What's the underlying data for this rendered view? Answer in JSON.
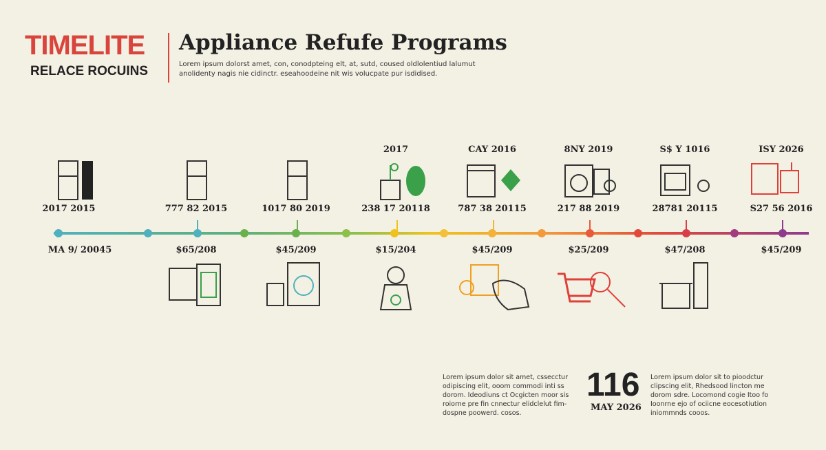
{
  "header": {
    "brand": "TIMELITE",
    "brand_sub": "RELACE ROCUINS",
    "title": "Appliance Refufe Programs",
    "subtitle": [
      "Lorem ipsum dolorst amet, con, conodpteing elt, at, sutd, coused oldlolentiud lalumut",
      "anolidenty nagis nie cidinctr. eseahoodeine nit wis volucpate pur isdidised."
    ]
  },
  "timeline": {
    "items": [
      {
        "top_label": "2017 2015",
        "bottom_label": "MA 9/ 20045"
      },
      {
        "top_label": "777 82 2015",
        "bottom_label": "$65/208"
      },
      {
        "top_label": "1017 80 2019",
        "bottom_label": "$45/209"
      },
      {
        "top_date": "2017",
        "top_label": "238 17 20118",
        "bottom_label": "$15/204"
      },
      {
        "top_date": "CAY 2016",
        "top_label": "787 38 20115",
        "bottom_label": "$45/209"
      },
      {
        "top_date": "8NY 2019",
        "top_label": "217 88 2019",
        "bottom_label": "$25/209"
      },
      {
        "top_date": "S$ Y 1016",
        "top_label": "28781 20115",
        "bottom_label": "$47/208"
      },
      {
        "top_date": "ISY 2026",
        "top_label": "S27 56 2016",
        "bottom_label": "$45/209"
      }
    ]
  },
  "footer": {
    "left_text": [
      "Lorem ipsum dolor sit amet, cssecctur",
      "odipiscing elit, ooom commodi inti ss",
      "dorom. Ideodiuns ct Ocgicten moor sis",
      "roiorne pre fin cnnectur elidclelut fim-",
      "dospne poowerd. cosos."
    ],
    "big_number": "116",
    "big_date": "MAY 2026",
    "right_text": [
      "Lorem ipsum dolor sit to pioodctur",
      "clipscing elit, Rhedsood lincton me",
      "dorom sdre. Locomond cogie Itoo fo",
      "Ioonrne ejo of ociicne eocesotiution",
      "iniommnds cooos."
    ]
  }
}
